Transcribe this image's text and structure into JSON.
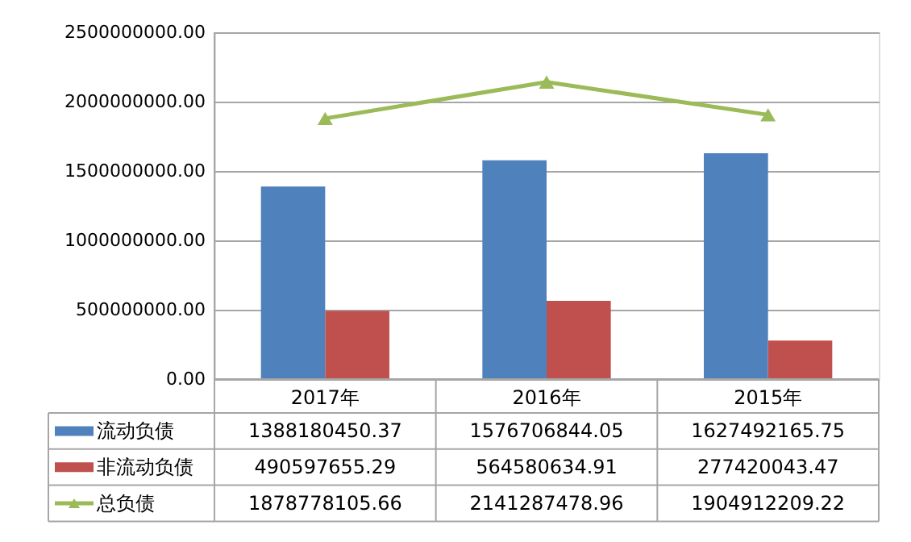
{
  "chart_data": {
    "type": "bar",
    "categories": [
      "2017年",
      "2016年",
      "2015年"
    ],
    "series": [
      {
        "name": "流动负债",
        "color": "#4f81bd",
        "values": [
          1388180450.37,
          1576706844.05,
          1627492165.75
        ]
      },
      {
        "name": "非流动负债",
        "color": "#c0504d",
        "values": [
          490597655.29,
          564580634.91,
          277420043.47
        ]
      },
      {
        "name": "总负债",
        "color": "#9bbb59",
        "type": "line",
        "marker": "triangle",
        "values": [
          1878778105.66,
          2141287478.96,
          1904912209.22
        ]
      }
    ],
    "ylim": [
      0,
      2500000000
    ],
    "yticks": [
      {
        "value": 0,
        "label": "0.00"
      },
      {
        "value": 500000000,
        "label": "500000000.00"
      },
      {
        "value": 1000000000,
        "label": "1000000000.00"
      },
      {
        "value": 1500000000,
        "label": "1500000000.00"
      },
      {
        "value": 2000000000,
        "label": "2000000000.00"
      },
      {
        "value": 2500000000,
        "label": "2500000000.00"
      }
    ],
    "grid": "y",
    "legend": "bottom",
    "data_labels": true
  }
}
